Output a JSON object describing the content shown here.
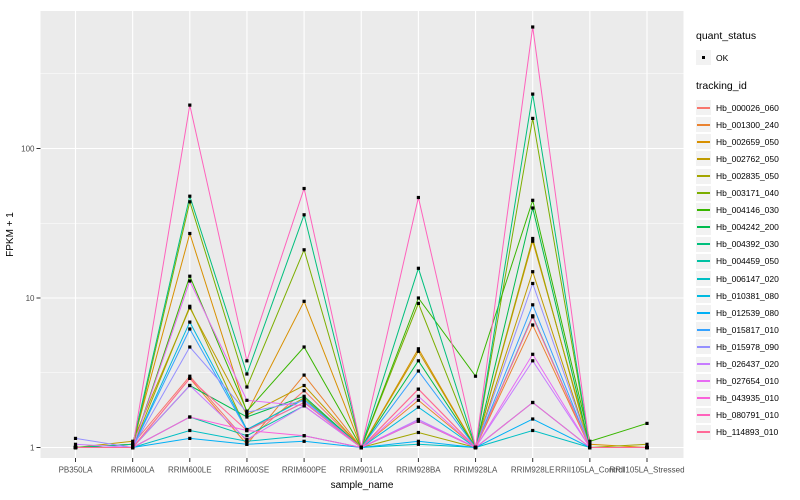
{
  "figure": {
    "panel_bg": "#EBEBEB",
    "grid_color": "#FFFFFF",
    "tick_color": "#333333",
    "tick_label_color": "#4D4D4D",
    "axis_title_color": "#000000",
    "point_color": "#000000"
  },
  "chart_data": {
    "type": "line",
    "title": "",
    "xlabel": "sample_name",
    "ylabel": "FPKM + 1",
    "y_scale": "log10",
    "y_major_ticks": [
      1,
      10,
      100
    ],
    "y_minor_ticks": [
      3.162,
      31.62,
      316.2
    ],
    "ylim": [
      0.75,
      850
    ],
    "grid": true,
    "legend_position": "right",
    "categories": [
      "PB350LA",
      "RRIM600LA",
      "RRIM600LE",
      "RRIM600SE",
      "RRIM600PE",
      "RRIM901LA",
      "RRIM928BA",
      "RRIM928LA",
      "RRIM928LE",
      "RRII105LA_Control",
      "RRII105LA_Stressed"
    ],
    "series": [
      {
        "name": "Hb_000026_060",
        "color": "#F8766D",
        "values": [
          1,
          1.05,
          3.0,
          1.1,
          2.4,
          1,
          2.46,
          1,
          7.5,
          1,
          1
        ]
      },
      {
        "name": "Hb_001300_240",
        "color": "#EA8331",
        "values": [
          1,
          1,
          2.9,
          1.05,
          3.05,
          1,
          2.07,
          1,
          6.6,
          1,
          1
        ]
      },
      {
        "name": "Hb_002659_050",
        "color": "#D89000",
        "values": [
          1,
          1.05,
          27,
          1.7,
          9.5,
          1,
          4.57,
          1,
          24,
          1.05,
          1
        ]
      },
      {
        "name": "Hb_002762_050",
        "color": "#C09B00",
        "values": [
          1,
          1.1,
          8.6,
          1.65,
          2.6,
          1,
          4.4,
          1,
          15,
          1,
          1
        ]
      },
      {
        "name": "Hb_002835_050",
        "color": "#A3A500",
        "values": [
          1,
          1,
          8.8,
          1.3,
          2.15,
          1,
          1.26,
          1,
          25,
          1,
          1.05
        ]
      },
      {
        "name": "Hb_003171_040",
        "color": "#7CAE00",
        "values": [
          1,
          1,
          44,
          2.54,
          21,
          1,
          9.2,
          1,
          159,
          1,
          1
        ]
      },
      {
        "name": "Hb_004146_030",
        "color": "#39B600",
        "values": [
          1,
          1,
          14,
          1.75,
          4.7,
          1,
          10,
          3.0,
          45,
          1.1,
          1.45
        ]
      },
      {
        "name": "Hb_004242_200",
        "color": "#00BB4E",
        "values": [
          1,
          1,
          2.6,
          1.6,
          2.2,
          1,
          3.8,
          1,
          40,
          1,
          1
        ]
      },
      {
        "name": "Hb_004392_030",
        "color": "#00BF7D",
        "values": [
          1,
          1.05,
          48,
          3.1,
          36,
          1,
          15.8,
          1,
          231,
          1,
          1
        ]
      },
      {
        "name": "Hb_004459_050",
        "color": "#00C1A3",
        "values": [
          1,
          1,
          1.6,
          1.2,
          1.9,
          1,
          1.5,
          1,
          2.0,
          1,
          1
        ]
      },
      {
        "name": "Hb_006147_020",
        "color": "#00BFC4",
        "values": [
          1,
          1,
          1.3,
          1.1,
          1.2,
          1,
          1.05,
          1,
          1.3,
          1,
          1
        ]
      },
      {
        "name": "Hb_010381_080",
        "color": "#00BAE0",
        "values": [
          1,
          1,
          6.9,
          1.32,
          2.1,
          1,
          1.86,
          1,
          7.6,
          1,
          1
        ]
      },
      {
        "name": "Hb_012539_080",
        "color": "#00B0F6",
        "values": [
          1,
          1,
          1.15,
          1.05,
          1.1,
          1,
          1.1,
          1,
          1.55,
          1,
          1
        ]
      },
      {
        "name": "Hb_015817_010",
        "color": "#35A2FF",
        "values": [
          1,
          1,
          6.2,
          1.3,
          2.0,
          1,
          3.25,
          1,
          9.0,
          1,
          1
        ]
      },
      {
        "name": "Hb_015978_090",
        "color": "#9590FF",
        "values": [
          1.15,
          1,
          4.7,
          1.72,
          2.05,
          1,
          1.54,
          1,
          12.5,
          1,
          1
        ]
      },
      {
        "name": "Hb_026437_020",
        "color": "#C77CFF",
        "values": [
          1.05,
          1,
          2.6,
          1.13,
          1.9,
          1,
          1.54,
          1,
          3.8,
          1,
          1
        ]
      },
      {
        "name": "Hb_027654_010",
        "color": "#E76BF3",
        "values": [
          1,
          1,
          13,
          2.07,
          1.9,
          1,
          2.2,
          1,
          4.2,
          1,
          1
        ]
      },
      {
        "name": "Hb_043935_010",
        "color": "#FA62DB",
        "values": [
          1,
          1,
          1.6,
          1.3,
          1.2,
          1,
          1.5,
          1,
          2.0,
          1,
          1
        ]
      },
      {
        "name": "Hb_080791_010",
        "color": "#FF62BC",
        "values": [
          1,
          1,
          195,
          3.8,
          54,
          1,
          47,
          1,
          650,
          1,
          1
        ]
      },
      {
        "name": "Hb_114893_010",
        "color": "#FF6A98",
        "values": [
          1,
          1,
          2.9,
          1.3,
          2.0,
          1,
          2.46,
          1,
          7.5,
          1,
          1
        ]
      }
    ]
  },
  "legend": {
    "quant_status": {
      "title": "quant_status",
      "items": [
        {
          "label": "OK",
          "marker": "point"
        }
      ]
    },
    "tracking_id": {
      "title": "tracking_id"
    }
  }
}
